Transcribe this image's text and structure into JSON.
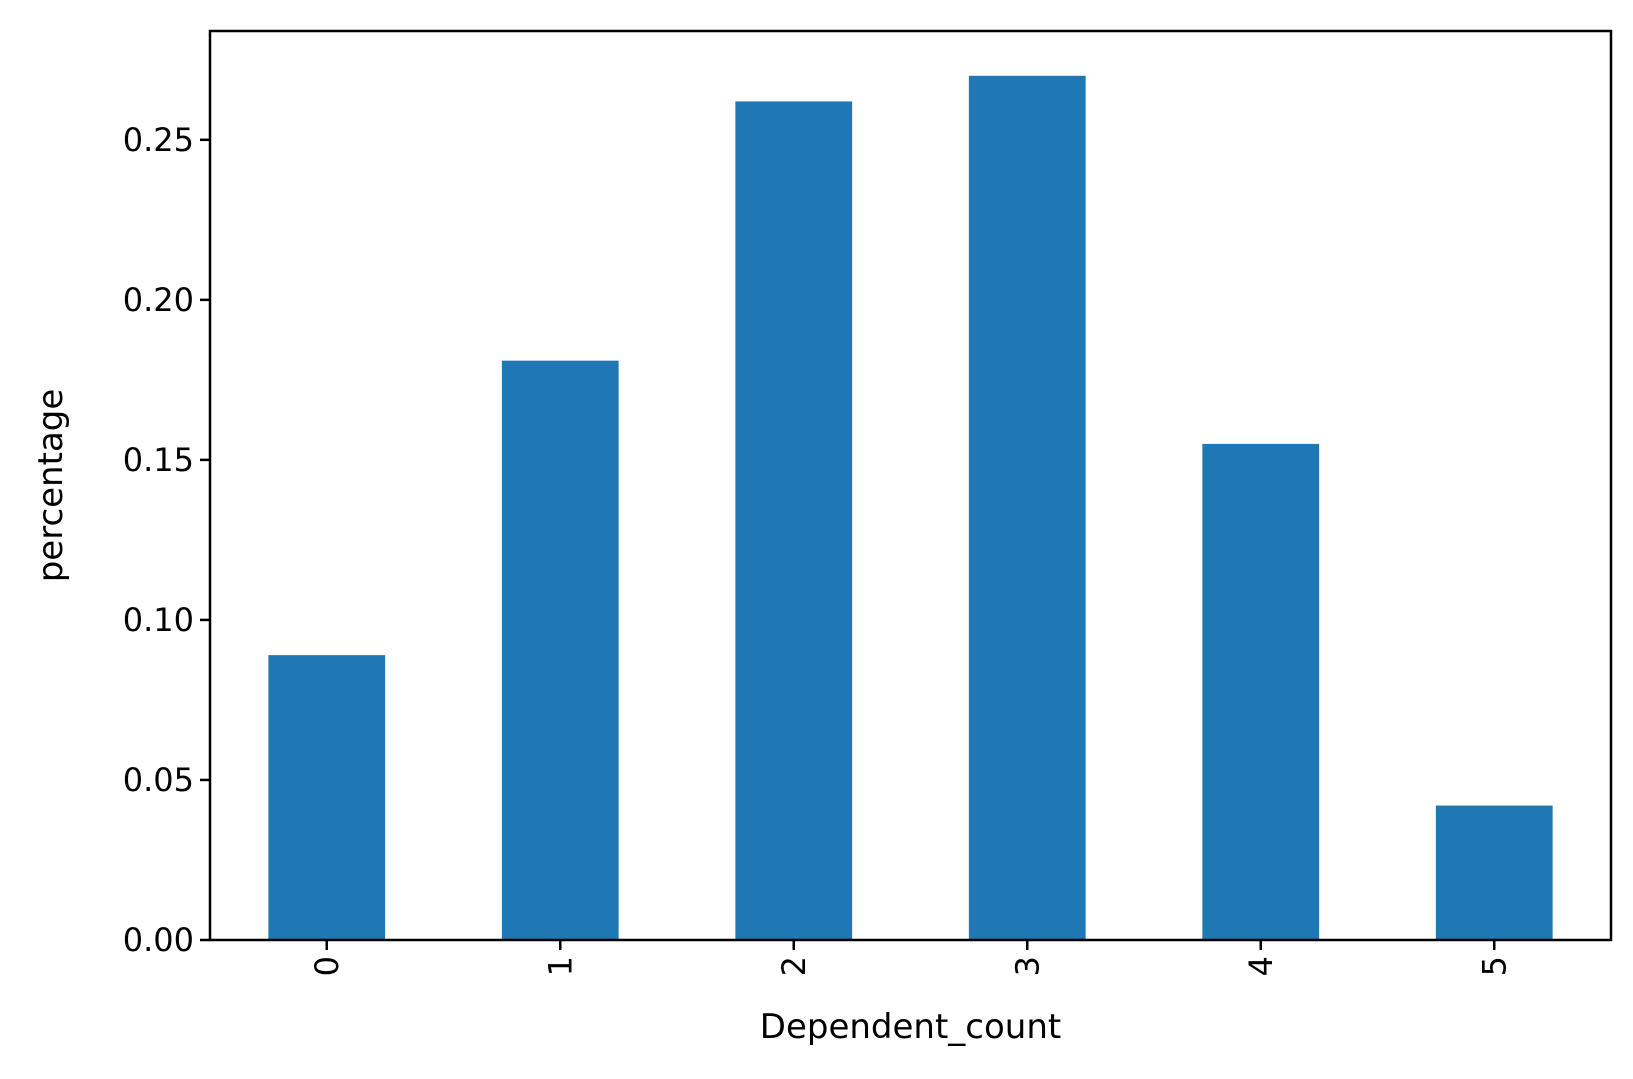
{
  "chart_data": {
    "type": "bar",
    "categories": [
      "0",
      "1",
      "2",
      "3",
      "4",
      "5"
    ],
    "values": [
      0.089,
      0.181,
      0.262,
      0.27,
      0.155,
      0.042
    ],
    "title": "",
    "xlabel": "Dependent_count",
    "ylabel": "percentage",
    "ylim": [
      0,
      0.284
    ],
    "yticks": [
      0.0,
      0.05,
      0.1,
      0.15,
      0.2,
      0.25
    ],
    "ytick_labels": [
      "0.00",
      "0.05",
      "0.10",
      "0.15",
      "0.20",
      "0.25"
    ],
    "xtick_rotation": "vertical",
    "grid": false,
    "legend": "none",
    "bar_color": "#1f77b4"
  }
}
